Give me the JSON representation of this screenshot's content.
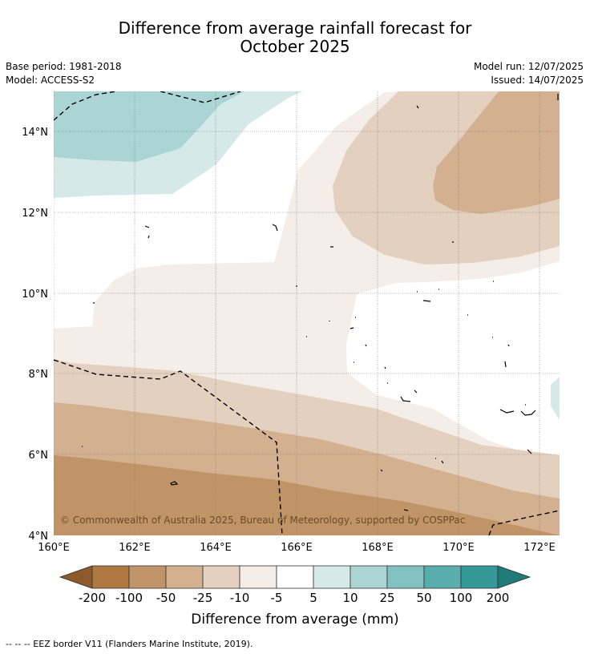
{
  "header": {
    "title_line1": "Difference from average rainfall forecast for",
    "title_line2": "October 2025",
    "base_period": "Base period: 1981-2018",
    "model": "Model: ACCESS-S2",
    "model_run": "Model run: 12/07/2025",
    "issued": "Issued: 14/07/2025"
  },
  "map": {
    "lat_range": [
      4,
      15
    ],
    "lon_range": [
      160,
      172.5
    ],
    "lat_ticks": [
      "4°N",
      "6°N",
      "8°N",
      "10°N",
      "12°N",
      "14°N"
    ],
    "lon_ticks": [
      "160°E",
      "162°E",
      "164°E",
      "166°E",
      "168°E",
      "170°E",
      "172°E"
    ],
    "gridlines": true,
    "copyright": "© Commonwealth of Australia 2025, Bureau of Meteorology, supported by COSPPac"
  },
  "colorbar": {
    "labels": [
      "-200",
      "-100",
      "-50",
      "-25",
      "-10",
      "-5",
      "5",
      "10",
      "25",
      "50",
      "100",
      "200"
    ],
    "colors": [
      "#8e5a2b",
      "#af7841",
      "#c19468",
      "#d3b08f",
      "#e4d0bf",
      "#f4ede8",
      "#ffffff",
      "#d5e9e9",
      "#abd5d5",
      "#83c1c1",
      "#5aadad",
      "#349898",
      "#217a7a"
    ],
    "label": "Difference from average (mm)"
  },
  "footer": {
    "legend": "--  --  -- EEZ border V11 (Flanders Marine Institute, 2019)."
  }
}
